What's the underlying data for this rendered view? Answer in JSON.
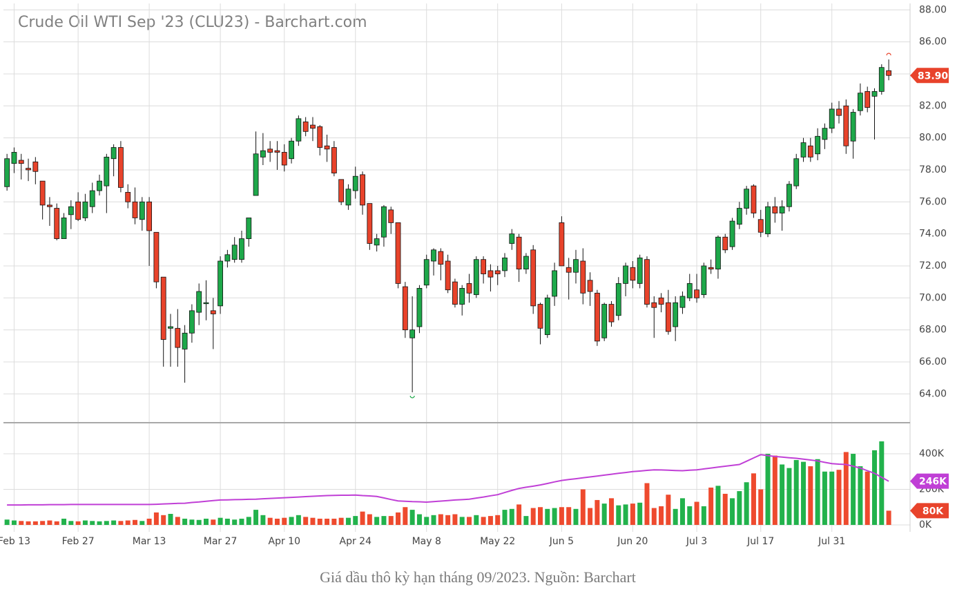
{
  "chart_data": {
    "type": "candlestick",
    "title": "Crude Oil WTI Sep '23 (CLU23) - Barchart.com",
    "caption": "Giá dầu thô kỳ hạn tháng 09/2023. Nguồn: Barchart",
    "categories": [
      null,
      "Feb 13",
      null,
      null,
      null,
      null,
      null,
      null,
      null,
      null,
      "Feb 27",
      null,
      null,
      null,
      null,
      null,
      null,
      null,
      null,
      null,
      "Mar 13",
      null,
      null,
      null,
      null,
      null,
      null,
      null,
      null,
      null,
      "Mar 27",
      null,
      null,
      null,
      null,
      null,
      null,
      null,
      null,
      "Apr 10",
      null,
      null,
      null,
      null,
      null,
      null,
      null,
      null,
      null,
      "Apr 24",
      null,
      null,
      null,
      null,
      null,
      null,
      null,
      null,
      null,
      "May 8",
      null,
      null,
      null,
      null,
      null,
      null,
      null,
      null,
      null,
      "May 22",
      null,
      null,
      null,
      null,
      null,
      null,
      null,
      null,
      "Jun 5",
      null,
      null,
      null,
      null,
      null,
      null,
      null,
      null,
      null,
      "Jun 20",
      null,
      null,
      null,
      null,
      null,
      null,
      null,
      null,
      "Jul 3",
      null,
      null,
      null,
      null,
      null,
      null,
      null,
      null,
      "Jul 17",
      null,
      null,
      null,
      null,
      null,
      null,
      null,
      null,
      null,
      "Jul 31",
      null,
      null,
      null,
      null,
      null,
      null,
      null,
      null
    ],
    "open": [
      76.95,
      78.4,
      78.6,
      78.1,
      78.5,
      77.3,
      75.8,
      75.6,
      73.7,
      75.2,
      76.0,
      75.0,
      75.7,
      76.7,
      77.0,
      78.7,
      79.4,
      76.6,
      76.0,
      74.9,
      76.0,
      74.1,
      71.3,
      68.1,
      68.1,
      66.8,
      67.8,
      69.1,
      69.7,
      69.2,
      69.5,
      72.3,
      72.4,
      72.4,
      73.7,
      76.4,
      78.8,
      79.3,
      79.2,
      79.1,
      78.7,
      79.8,
      81.0,
      80.8,
      80.7,
      79.5,
      79.4,
      77.4,
      75.8,
      76.7,
      77.7,
      75.9,
      73.3,
      73.8,
      75.5,
      74.7,
      70.7,
      67.5,
      68.2,
      70.8,
      72.3,
      72.9,
      72.3,
      71.0,
      69.6,
      70.9,
      70.2,
      72.4,
      71.7,
      71.7,
      71.7,
      73.4,
      73.8,
      71.8,
      73.0,
      69.6,
      67.7,
      70.1,
      74.7,
      71.9,
      71.6,
      72.3,
      71.1,
      70.3,
      67.5,
      69.6,
      68.9,
      70.9,
      71.9,
      70.9,
      72.4,
      69.7,
      70.0,
      69.7,
      68.2,
      69.4,
      70.0,
      70.5,
      70.2,
      71.9,
      71.8,
      73.8,
      73.2,
      74.6,
      75.6,
      77.0,
      74.9,
      74.0,
      75.7,
      75.3,
      75.7,
      77.0,
      78.8,
      79.5,
      79.0,
      79.9,
      80.6,
      81.8,
      82.0,
      79.8,
      81.7,
      82.9,
      82.6,
      82.9,
      84.2
    ],
    "high": [
      79.0,
      79.4,
      79.0,
      78.7,
      78.8,
      77.3,
      76.3,
      75.9,
      75.3,
      76.1,
      76.6,
      76.5,
      77.2,
      77.7,
      79.0,
      79.6,
      79.8,
      77.1,
      76.9,
      76.3,
      76.3,
      74.1,
      71.3,
      69.0,
      69.3,
      68.3,
      69.6,
      70.9,
      71.1,
      70.0,
      72.6,
      73.0,
      73.8,
      74.2,
      75.0,
      80.4,
      80.3,
      79.8,
      79.8,
      79.6,
      80.0,
      81.4,
      81.3,
      81.3,
      80.8,
      80.2,
      79.8,
      77.4,
      77.1,
      78.2,
      77.9,
      75.9,
      74.0,
      75.8,
      75.7,
      74.7,
      71.0,
      70.1,
      70.8,
      72.7,
      73.1,
      73.1,
      72.7,
      71.2,
      70.8,
      71.5,
      72.6,
      72.6,
      72.1,
      72.0,
      72.8,
      74.3,
      74.0,
      72.8,
      73.3,
      69.7,
      70.2,
      72.2,
      75.1,
      72.5,
      73.0,
      73.1,
      71.6,
      70.5,
      69.7,
      69.8,
      71.3,
      72.2,
      72.3,
      72.7,
      72.6,
      70.1,
      70.3,
      70.5,
      70.1,
      70.4,
      71.5,
      71.5,
      72.2,
      72.4,
      73.9,
      74.0,
      75.0,
      76.0,
      77.0,
      77.1,
      75.5,
      76.0,
      76.3,
      76.1,
      77.3,
      79.0,
      80.0,
      80.0,
      80.6,
      80.9,
      82.2,
      82.3,
      82.4,
      81.8,
      83.4,
      83.2,
      83.1,
      84.6,
      84.9
    ],
    "low": [
      76.7,
      77.8,
      77.4,
      77.3,
      77.1,
      74.9,
      74.5,
      73.6,
      73.7,
      74.3,
      74.8,
      74.8,
      75.3,
      76.4,
      75.3,
      77.6,
      76.6,
      75.6,
      74.6,
      74.2,
      72.0,
      70.6,
      65.7,
      65.7,
      65.7,
      64.7,
      67.2,
      68.3,
      68.6,
      66.8,
      69.0,
      71.9,
      72.2,
      72.2,
      73.2,
      76.4,
      78.3,
      78.5,
      78.0,
      77.9,
      78.4,
      79.5,
      80.1,
      79.8,
      78.9,
      78.5,
      77.6,
      75.8,
      75.5,
      76.2,
      75.2,
      73.0,
      72.9,
      73.2,
      74.0,
      70.6,
      67.5,
      64.1,
      67.8,
      70.6,
      71.4,
      71.1,
      70.3,
      69.4,
      68.9,
      69.7,
      70.0,
      70.9,
      70.4,
      70.8,
      71.3,
      73.0,
      71.0,
      71.5,
      69.0,
      67.1,
      67.5,
      69.5,
      72.0,
      69.9,
      70.9,
      69.6,
      69.5,
      67.0,
      67.3,
      68.2,
      68.6,
      70.1,
      70.6,
      70.6,
      69.4,
      67.5,
      69.1,
      67.7,
      67.3,
      69.0,
      69.8,
      69.7,
      70.0,
      71.5,
      71.2,
      72.8,
      73.0,
      74.3,
      75.2,
      75.0,
      73.8,
      73.8,
      74.7,
      74.2,
      75.4,
      76.8,
      78.5,
      78.5,
      78.6,
      79.3,
      80.3,
      80.9,
      79.0,
      78.7,
      81.4,
      81.6,
      79.9,
      82.7,
      83.6
    ],
    "close": [
      78.7,
      79.1,
      78.4,
      78.0,
      77.9,
      75.8,
      75.7,
      73.7,
      75.0,
      75.7,
      74.9,
      76.0,
      76.7,
      77.3,
      78.8,
      79.4,
      76.9,
      76.0,
      75.0,
      76.0,
      74.2,
      71.0,
      67.4,
      68.2,
      66.9,
      67.8,
      69.2,
      70.4,
      69.7,
      69.0,
      72.3,
      72.7,
      73.3,
      73.7,
      75.0,
      79.0,
      79.2,
      79.1,
      79.1,
      78.3,
      79.8,
      81.2,
      80.4,
      80.6,
      79.4,
      79.3,
      77.8,
      76.0,
      76.8,
      77.6,
      75.8,
      73.4,
      73.7,
      75.7,
      74.7,
      70.9,
      68.0,
      68.0,
      70.6,
      72.4,
      73.0,
      72.1,
      70.5,
      69.6,
      70.6,
      70.3,
      72.4,
      71.5,
      71.3,
      71.5,
      72.5,
      74.0,
      71.8,
      72.6,
      69.5,
      68.1,
      70.0,
      71.7,
      72.0,
      71.6,
      72.4,
      70.3,
      70.4,
      67.3,
      69.6,
      68.5,
      70.9,
      72.0,
      71.1,
      72.5,
      69.6,
      69.4,
      69.6,
      67.9,
      69.7,
      70.1,
      70.9,
      70.0,
      72.0,
      71.8,
      73.8,
      73.0,
      74.8,
      75.6,
      76.8,
      75.3,
      74.1,
      75.7,
      75.3,
      75.7,
      77.1,
      78.7,
      79.7,
      78.8,
      80.1,
      80.6,
      81.8,
      81.4,
      79.5,
      81.6,
      82.8,
      81.9,
      82.9,
      84.4,
      83.9
    ],
    "close_labels": {
      "124": "83.90"
    },
    "volume": [
      30000,
      25000,
      22000,
      20000,
      20000,
      22000,
      25000,
      20000,
      35000,
      22000,
      20000,
      25000,
      22000,
      20000,
      22000,
      25000,
      22000,
      25000,
      28000,
      22000,
      35000,
      70000,
      55000,
      62000,
      45000,
      35000,
      30000,
      28000,
      35000,
      30000,
      40000,
      35000,
      30000,
      35000,
      45000,
      85000,
      55000,
      40000,
      35000,
      40000,
      45000,
      55000,
      45000,
      40000,
      35000,
      35000,
      35000,
      40000,
      40000,
      50000,
      75000,
      60000,
      45000,
      50000,
      50000,
      70000,
      100000,
      85000,
      60000,
      45000,
      55000,
      60000,
      55000,
      60000,
      45000,
      45000,
      55000,
      45000,
      50000,
      55000,
      85000,
      90000,
      115000,
      50000,
      95000,
      100000,
      90000,
      95000,
      100000,
      100000,
      90000,
      200000,
      95000,
      140000,
      120000,
      150000,
      110000,
      115000,
      120000,
      125000,
      235000,
      95000,
      105000,
      170000,
      90000,
      150000,
      105000,
      130000,
      105000,
      210000,
      220000,
      175000,
      150000,
      190000,
      240000,
      290000,
      200000,
      400000,
      390000,
      340000,
      320000,
      365000,
      355000,
      330000,
      370000,
      300000,
      300000,
      310000,
      410000,
      400000,
      330000,
      300000,
      420000,
      470000,
      80000
    ],
    "volume_labels": {
      "124": "80K"
    },
    "volume_ma": [
      112000,
      112000,
      112000,
      113000,
      113000,
      113000,
      114000,
      114000,
      114000,
      115000,
      115000,
      115000,
      115000,
      115000,
      115000,
      115000,
      115000,
      115000,
      115000,
      115000,
      115000,
      116000,
      118000,
      119000,
      121000,
      122000,
      126000,
      129000,
      133000,
      137000,
      140000,
      141000,
      142000,
      143000,
      144000,
      145000,
      147000,
      149000,
      151000,
      153000,
      155000,
      157000,
      159000,
      161000,
      163000,
      165000,
      166000,
      167000,
      167000,
      168000,
      165000,
      163000,
      160000,
      152000,
      143000,
      135000,
      133000,
      131000,
      130000,
      128000,
      131000,
      134000,
      137000,
      140000,
      142000,
      145000,
      151000,
      157000,
      164000,
      170000,
      182000,
      194000,
      205000,
      212000,
      218000,
      225000,
      233000,
      242000,
      250000,
      255000,
      260000,
      265000,
      270000,
      275000,
      280000,
      285000,
      290000,
      295000,
      300000,
      303000,
      307000,
      310000,
      309000,
      308000,
      306000,
      305000,
      308000,
      310000,
      315000,
      320000,
      325000,
      330000,
      335000,
      340000,
      358000,
      377000,
      395000,
      390000,
      385000,
      382000,
      378000,
      375000,
      370000,
      365000,
      360000,
      352000,
      345000,
      342000,
      340000,
      330000,
      320000,
      305000,
      290000,
      268000,
      246000
    ],
    "volume_ma_labels": {
      "124": "246K"
    },
    "up_color": "#1ea84a",
    "down_color": "#e8432b",
    "ma_color": "#c03fd6",
    "xlim": [
      -0.5,
      127
    ],
    "ylim": [
      62.2,
      88.4
    ],
    "yticks": [
      {
        "value": 64,
        "label": "64.00"
      },
      {
        "value": 66,
        "label": "66.00"
      },
      {
        "value": 68,
        "label": "68.00"
      },
      {
        "value": 70,
        "label": "70.00"
      },
      {
        "value": 72,
        "label": "72.00"
      },
      {
        "value": 74,
        "label": "74.00"
      },
      {
        "value": 76,
        "label": "76.00"
      },
      {
        "value": 78,
        "label": "78.00"
      },
      {
        "value": 80,
        "label": "80.00"
      },
      {
        "value": 82,
        "label": "82.00"
      },
      {
        "value": 84,
        "label": "84.00"
      },
      {
        "value": 86,
        "label": "86.00"
      },
      {
        "value": 88,
        "label": "88.00"
      }
    ],
    "y2lim": [
      -39000,
      575000
    ],
    "y2ticks": [
      {
        "value": 0,
        "label": "0K"
      },
      {
        "value": 200000,
        "label": "200K"
      },
      {
        "value": 400000,
        "label": "400K"
      }
    ],
    "grid": true
  }
}
